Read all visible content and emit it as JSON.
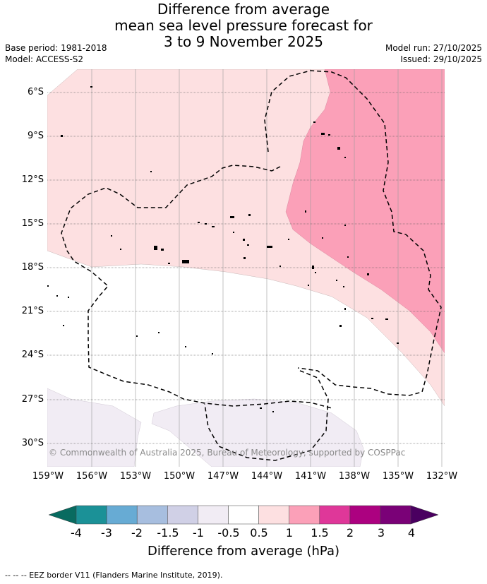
{
  "title_lines": [
    "Difference from average",
    "mean sea level pressure forecast for",
    "3 to 9 November 2025"
  ],
  "base_period": "Base period: 1981-2018",
  "model": "Model: ACCESS-S2",
  "model_run": "Model run: 27/10/2025",
  "issued": "Issued: 29/10/2025",
  "latitudes": [
    "6°S",
    "9°S",
    "12°S",
    "15°S",
    "18°S",
    "21°S",
    "24°S",
    "27°S",
    "30°S"
  ],
  "longitudes": [
    "159°W",
    "156°W",
    "153°W",
    "150°W",
    "147°W",
    "144°W",
    "141°W",
    "138°W",
    "135°W",
    "132°W"
  ],
  "copyright": "© Commonwealth of Australia 2025, Bureau of Meteorology, supported by COSPPac",
  "colorbar": {
    "title": "Difference from average (hPa)",
    "ticks": [
      "-4",
      "-3",
      "-2",
      "-1.5",
      "-1",
      "-0.5",
      "0.5",
      "1",
      "1.5",
      "2",
      "3",
      "4"
    ],
    "colors": [
      "#1b9197",
      "#67abd4",
      "#a7bedf",
      "#d0d0e6",
      "#f1ecf4",
      "#ffffff",
      "#fde0e1",
      "#fba0b8",
      "#df3799",
      "#ac0180",
      "#7a0177"
    ],
    "under_color": "#086b60",
    "over_color": "#4a0060"
  },
  "footer": "-- -- -- EEZ border V11 (Flanders Marine Institute, 2019)."
}
